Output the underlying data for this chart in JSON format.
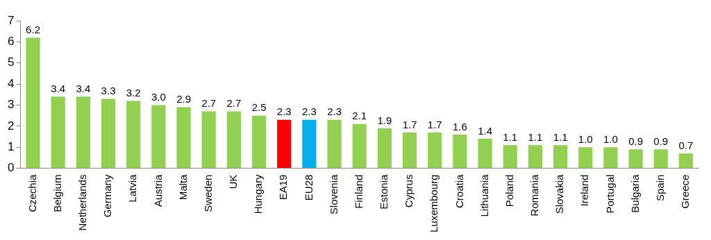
{
  "chart_data": {
    "type": "bar",
    "categories": [
      "Czechia",
      "Belgium",
      "Netherlands",
      "Germany",
      "Latvia",
      "Austria",
      "Malta",
      "Sweden",
      "UK",
      "Hungary",
      "EA19",
      "EU28",
      "Slovenia",
      "Finland",
      "Estonia",
      "Cyprus",
      "Luxembourg",
      "Croatia",
      "Lithuania",
      "Poland",
      "Romania",
      "Slovakia",
      "Ireland",
      "Portugal",
      "Bulgaria",
      "Spain",
      "Greece"
    ],
    "values": [
      6.2,
      3.4,
      3.4,
      3.3,
      3.2,
      3.0,
      2.9,
      2.7,
      2.7,
      2.5,
      2.3,
      2.3,
      2.3,
      2.1,
      1.9,
      1.7,
      1.7,
      1.6,
      1.4,
      1.1,
      1.1,
      1.1,
      1.0,
      1.0,
      0.9,
      0.9,
      0.7
    ],
    "colors": [
      "#92d050",
      "#92d050",
      "#92d050",
      "#92d050",
      "#92d050",
      "#92d050",
      "#92d050",
      "#92d050",
      "#92d050",
      "#92d050",
      "#ff0000",
      "#00b0f0",
      "#92d050",
      "#92d050",
      "#92d050",
      "#92d050",
      "#92d050",
      "#92d050",
      "#92d050",
      "#92d050",
      "#92d050",
      "#92d050",
      "#92d050",
      "#92d050",
      "#92d050",
      "#92d050",
      "#92d050"
    ],
    "value_labels": [
      "6.2",
      "3.4",
      "3.4",
      "3.3",
      "3.2",
      "3.0",
      "2.9",
      "2.7",
      "2.7",
      "2.5",
      "2.3",
      "2.3",
      "2.3",
      "2.1",
      "1.9",
      "1.7",
      "1.7",
      "1.6",
      "1.4",
      "1.1",
      "1.1",
      "1.1",
      "1.0",
      "1.0",
      "0.9",
      "0.9",
      "0.7"
    ],
    "ylim": [
      0,
      7
    ],
    "yticks": [
      0,
      1,
      2,
      3,
      4,
      5,
      6,
      7
    ],
    "grid": false,
    "legend": false
  }
}
